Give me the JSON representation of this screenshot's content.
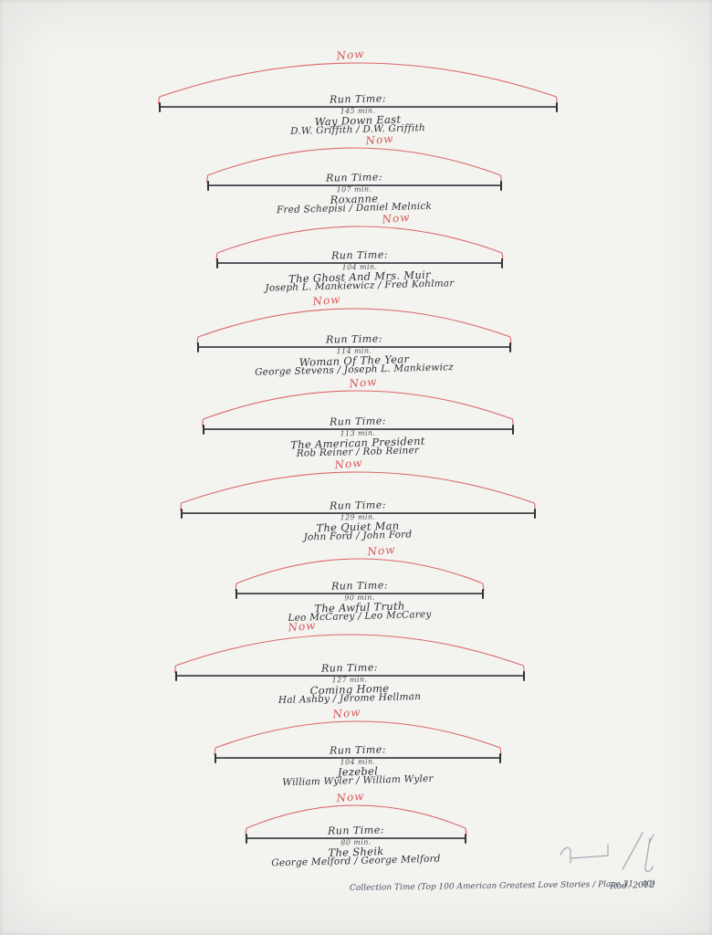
{
  "artwork": {
    "now_label": "Now",
    "run_time_label": "Run Time:",
    "sections": [
      {
        "minutes": "145 min.",
        "title": "Way Down East",
        "credits": "D.W. Griffith / D.W. Griffith"
      },
      {
        "minutes": "107 min.",
        "title": "Roxanne",
        "credits": "Fred Schepisi / Daniel Melnick"
      },
      {
        "minutes": "104 min.",
        "title": "The Ghost And Mrs. Muir",
        "credits": "Joseph L. Mankiewicz / Fred Kohlmar"
      },
      {
        "minutes": "114 min.",
        "title": "Woman Of The Year",
        "credits": "George Stevens / Joseph L. Mankiewicz"
      },
      {
        "minutes": "113 min.",
        "title": "The American President",
        "credits": "Rob Reiner / Rob Reiner"
      },
      {
        "minutes": "129 min.",
        "title": "The Quiet Man",
        "credits": "John Ford / John Ford"
      },
      {
        "minutes": "90 min.",
        "title": "The Awful Truth",
        "credits": "Leo McCarey / Leo McCarey"
      },
      {
        "minutes": "127 min.",
        "title": "Coming Home",
        "credits": "Hal Ashby / Jerome Hellman"
      },
      {
        "minutes": "104 min.",
        "title": "Jezebel",
        "credits": "William Wyler / William Wyler"
      },
      {
        "minutes": "80 min.",
        "title": "The Sheik",
        "credits": "George Melford / George Melford"
      }
    ],
    "footer": {
      "caption": "Collection Time (Top 100 American Greatest Love Stories / Place 31 - 40)",
      "signature": "Rod. 2012"
    },
    "colors": {
      "arc_red": "#d9595c",
      "ink": "#2d3038",
      "pencil": "#9aa0aa",
      "paper": "#f3f3f0"
    }
  }
}
